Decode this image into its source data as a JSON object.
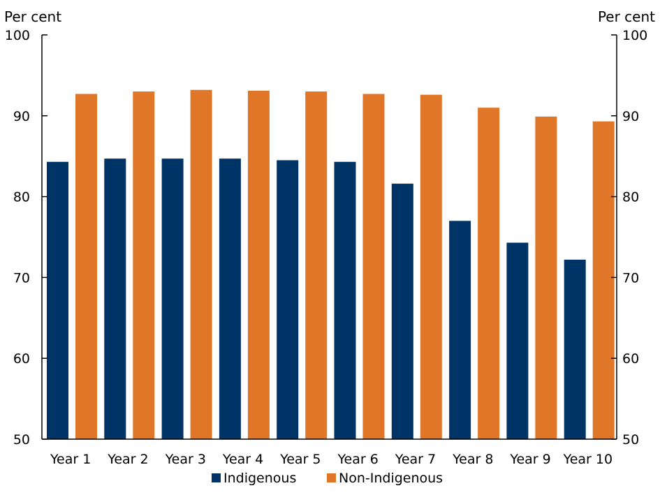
{
  "chart_data": {
    "type": "bar",
    "categories": [
      "Year 1",
      "Year 2",
      "Year 3",
      "Year 4",
      "Year 5",
      "Year 6",
      "Year 7",
      "Year 8",
      "Year 9",
      "Year 10"
    ],
    "series": [
      {
        "name": "Indigenous",
        "color": "#003366",
        "values": [
          84.3,
          84.7,
          84.7,
          84.7,
          84.5,
          84.3,
          81.6,
          77.0,
          74.3,
          72.2
        ]
      },
      {
        "name": "Non-Indigenous",
        "color": "#E07628",
        "values": [
          92.7,
          93.0,
          93.2,
          93.1,
          93.0,
          92.7,
          92.6,
          91.0,
          89.9,
          89.3
        ]
      }
    ],
    "ylim": [
      50,
      100
    ],
    "yticks": [
      50,
      60,
      70,
      80,
      90,
      100
    ],
    "ylabel_left": "Per cent",
    "ylabel_right": "Per cent",
    "secondary_y_axis": true,
    "grid": false,
    "legend_position": "bottom-center"
  }
}
